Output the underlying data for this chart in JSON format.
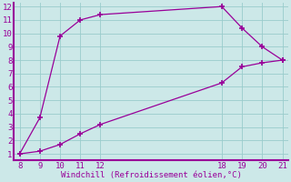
{
  "upper_x": [
    8,
    9,
    10,
    11,
    12,
    18,
    19,
    20,
    21
  ],
  "upper_y": [
    1,
    3.7,
    9.8,
    11.0,
    11.4,
    12.0,
    10.4,
    9.0,
    8.0
  ],
  "lower_x": [
    8,
    9,
    10,
    11,
    12,
    18,
    19,
    20,
    21
  ],
  "lower_y": [
    1,
    1.2,
    1.7,
    2.5,
    3.2,
    6.3,
    7.5,
    7.8,
    8.0
  ],
  "line_color": "#990099",
  "bg_color": "#cce8e8",
  "plot_bg": "#cce8e8",
  "grid_color": "#99cccc",
  "xlabel": "Windchill (Refroidissement éolien,°C)",
  "xlabel_color": "#990099",
  "xlim": [
    8,
    21
  ],
  "ylim": [
    1,
    12
  ],
  "xtick_positions": [
    8,
    9,
    10,
    11,
    12,
    18,
    19,
    20,
    21
  ],
  "xtick_labels": [
    "8",
    "9",
    "10",
    "11",
    "12",
    "18",
    "19",
    "20",
    "21"
  ],
  "ytick_positions": [
    1,
    2,
    3,
    4,
    5,
    6,
    7,
    8,
    9,
    10,
    11,
    12
  ],
  "ytick_labels": [
    "1",
    "2",
    "3",
    "4",
    "5",
    "6",
    "7",
    "8",
    "9",
    "10",
    "11",
    "12"
  ],
  "tick_color": "#990099",
  "marker": "+",
  "marker_size": 4,
  "linewidth": 0.9
}
